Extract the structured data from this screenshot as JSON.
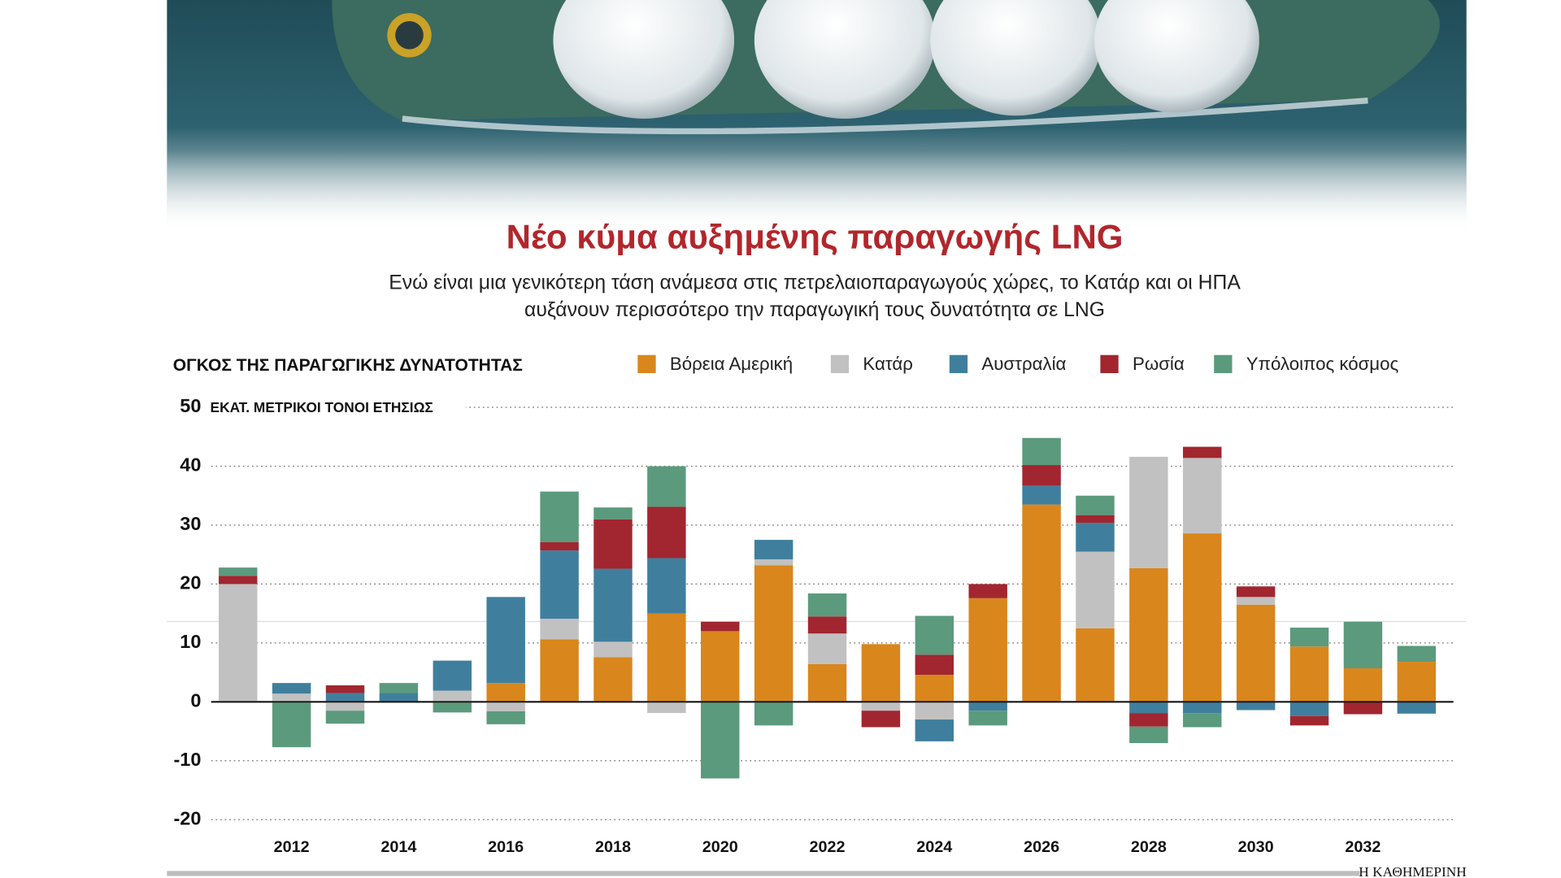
{
  "chart_data": {
    "type": "stacked-bar",
    "title": "Νέο κύμα αυξημένης παραγωγής LNG",
    "subtitle": [
      "Ενώ είναι μια γενικότερη τάση ανάμεσα στις πετρελαιοπαραγωγούς χώρες, το Κατάρ και οι ΗΠΑ",
      "αυξάνουν περισσότερο την παραγωγική τους δυνατότητα σε LNG"
    ],
    "legend_title": "ΟΓΚΟΣ ΤΗΣ ΠΑΡΑΓΩΓΙΚΗΣ ΔΥΝΑΤΟΤΗΤΑΣ",
    "ylabel": "ΕΚΑΤ. ΜΕΤΡΙΚΟΙ ΤΟΝΟΙ ΕΤΗΣΙΩΣ",
    "source": "Η ΚΑΘΗΜΕΡΙΝΗ",
    "x": [
      2011,
      2012,
      2013,
      2014,
      2015,
      2016,
      2017,
      2018,
      2019,
      2020,
      2021,
      2022,
      2023,
      2024,
      2025,
      2026,
      2027,
      2028,
      2029,
      2030,
      2031,
      2032,
      2033
    ],
    "xlim": [
      2010.5,
      2033.5
    ],
    "xticks": [
      2012,
      2014,
      2016,
      2018,
      2020,
      2022,
      2024,
      2026,
      2028,
      2030,
      2032
    ],
    "ylim": [
      -20,
      50
    ],
    "yticks": [
      50,
      40,
      30,
      20,
      10,
      0,
      -10,
      -20
    ],
    "grid": true,
    "series": [
      {
        "name": "Βόρεια Αμερική",
        "color": "#d9861c",
        "values": [
          0,
          0,
          0,
          0,
          0,
          3.2,
          10.6,
          7.6,
          15.0,
          12.0,
          23.2,
          6.4,
          9.8,
          4.6,
          17.6,
          33.5,
          12.5,
          22.7,
          28.6,
          16.5,
          9.4,
          5.7,
          6.8
        ]
      },
      {
        "name": "Κατάρ",
        "color": "#c2c1c1",
        "values": [
          20.0,
          1.4,
          -1.5,
          0,
          1.9,
          -1.6,
          3.5,
          2.6,
          -1.9,
          0,
          1.0,
          5.2,
          -1.5,
          -3.0,
          0,
          0,
          13.0,
          18.9,
          12.8,
          1.3,
          0,
          0,
          0
        ]
      },
      {
        "name": "Αυστραλία",
        "color": "#3f7f9d",
        "values": [
          0,
          1.8,
          1.5,
          1.5,
          5.1,
          14.6,
          11.6,
          12.4,
          9.4,
          0,
          3.3,
          0,
          0,
          -3.7,
          -1.5,
          3.2,
          4.9,
          -1.9,
          -1.9,
          -1.4,
          -2.4,
          0,
          -2.0
        ]
      },
      {
        "name": "Ρωσία",
        "color": "#a1262f",
        "values": [
          1.4,
          0,
          1.3,
          0,
          0,
          0,
          1.4,
          8.4,
          8.7,
          1.6,
          0,
          2.9,
          -2.8,
          3.4,
          2.4,
          3.5,
          1.3,
          -2.3,
          1.9,
          1.8,
          -1.6,
          -2.1,
          0
        ]
      },
      {
        "name": "Υπόλοιπος κόσμος",
        "color": "#5b9a7d",
        "values": [
          1.4,
          -7.7,
          -2.2,
          1.7,
          -1.8,
          -2.2,
          8.6,
          2.0,
          6.9,
          -13.0,
          -4.0,
          3.9,
          0,
          6.6,
          -2.5,
          4.6,
          3.3,
          -2.8,
          -2.4,
          0,
          3.2,
          7.9,
          2.7
        ]
      }
    ]
  }
}
